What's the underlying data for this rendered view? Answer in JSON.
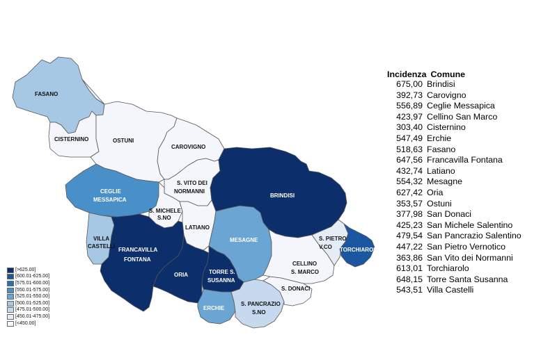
{
  "colors": {
    "c0": "#f4f6fb",
    "c1": "#e6ecf6",
    "c2": "#c6d9ee",
    "c3": "#a6c8e4",
    "c4": "#6aa5d4",
    "c5": "#4a90c8",
    "c6": "#2a71b4",
    "c7": "#1a57a0",
    "c8": "#0c2f6b"
  },
  "map": {
    "labels": {
      "fasano": "FASANO",
      "cisternino": "CISTERNINO",
      "ostuni": "OSTUNI",
      "carovigno": "CAROVIGNO",
      "ceglie_1": "CEGLIE",
      "ceglie_2": "MESSAPICA",
      "svito_1": "S. VITO DEI",
      "svito_2": "NORMANNI",
      "brindisi": "BRINDISI",
      "smichele_1": "S. MICHELE",
      "smichele_2": "S.NO",
      "latiano": "LATIANO",
      "mesagne": "MESAGNE",
      "villa_1": "VILLA",
      "villa_2": "CASTELLI",
      "francavilla_1": "FRANCAVILLA",
      "francavilla_2": "FONTANA",
      "oria": "ORIA",
      "torre_1": "TORRE S.",
      "torre_2": "SUSANNA",
      "erchie": "ERCHIE",
      "spancrazio_1": "S. PANCRAZIO",
      "spancrazio_2": "S.NO",
      "spietro_1": "S. PIETRO",
      "spietro_2": "V.CO",
      "torchiarolo": "TORCHIAROLO",
      "cellino_1": "CELLINO",
      "cellino_2": "S. MARCO",
      "sdonaci": "S. DONACI"
    }
  },
  "legend": [
    {
      "label": "[>625.00]",
      "color": "#0c2f6b"
    },
    {
      "label": "[600.01-625.00]",
      "color": "#1a57a0"
    },
    {
      "label": "[575.01-600.00]",
      "color": "#2a71b4"
    },
    {
      "label": "[550.01-575.00]",
      "color": "#4a90c8"
    },
    {
      "label": "[525.01-550.00]",
      "color": "#6aa5d4"
    },
    {
      "label": "[500.01-525.00]",
      "color": "#a6c8e4"
    },
    {
      "label": "[475.01-500.00]",
      "color": "#c6d9ee"
    },
    {
      "label": "[450.01-475.00]",
      "color": "#e6ecf6"
    },
    {
      "label": "[<450.00]",
      "color": "#f4f6fb"
    }
  ],
  "table": {
    "header_incidenza": "Incidenza",
    "header_comune": "Comune",
    "rows": [
      {
        "value": "675,00",
        "name": "Brindisi"
      },
      {
        "value": "392,73",
        "name": "Carovigno"
      },
      {
        "value": "556,89",
        "name": "Ceglie Messapica"
      },
      {
        "value": "423,97",
        "name": "Cellino San Marco"
      },
      {
        "value": "303,40",
        "name": "Cisternino"
      },
      {
        "value": "547,49",
        "name": "Erchie"
      },
      {
        "value": "518,63",
        "name": "Fasano"
      },
      {
        "value": "647,56",
        "name": "Francavilla Fontana"
      },
      {
        "value": "432,74",
        "name": "Latiano"
      },
      {
        "value": "554,32",
        "name": "Mesagne"
      },
      {
        "value": "627,42",
        "name": "Oria"
      },
      {
        "value": "353,57",
        "name": "Ostuni"
      },
      {
        "value": "377,98",
        "name": "San Donaci"
      },
      {
        "value": "425,23",
        "name": "San Michele Salentino"
      },
      {
        "value": "479,54",
        "name": "San Pancrazio Salentino"
      },
      {
        "value": "447,22",
        "name": "San Pietro Vernotico"
      },
      {
        "value": "363,86",
        "name": "San Vito dei Normanni"
      },
      {
        "value": "613,01",
        "name": "Torchiarolo"
      },
      {
        "value": "648,15",
        "name": "Torre Santa Susanna"
      },
      {
        "value": "543,51",
        "name": "Villa Castelli"
      }
    ]
  }
}
